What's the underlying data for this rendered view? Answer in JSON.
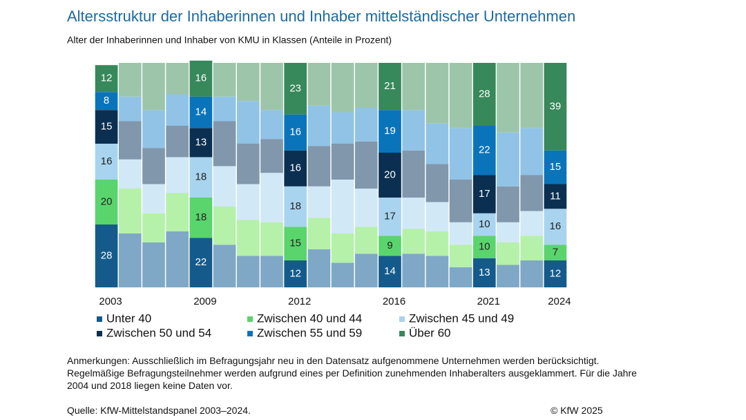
{
  "chart_data": {
    "type": "stacked_bar",
    "title": "Altersstruktur der Inhaberinnen und Inhaber mittelständischer Unternehmen",
    "subtitle": "Alter der Inhaberinnen und Inhaber von KMU in Klassen (Anteile in Prozent)",
    "categories": [
      "2003",
      null,
      null,
      null,
      "2009",
      null,
      null,
      null,
      "2012",
      null,
      null,
      null,
      "2016",
      null,
      null,
      null,
      "2021",
      null,
      null,
      "2024"
    ],
    "ylim": [
      0,
      100
    ],
    "series": [
      {
        "name": "Unter 40",
        "color": "#145b8c",
        "muted_color": "#7fa8c6",
        "values": [
          28,
          24,
          20,
          25,
          22,
          19,
          14,
          14,
          12,
          17,
          11,
          15,
          14,
          15,
          14,
          9,
          13,
          10,
          12,
          12
        ]
      },
      {
        "name": "Zwischen 40 und 44",
        "color": "#5ad46c",
        "muted_color": "#b5f1a9",
        "values": [
          20,
          20,
          13,
          17,
          18,
          17,
          16,
          15,
          15,
          14,
          13,
          12,
          9,
          11,
          11,
          10,
          10,
          10,
          11,
          7
        ]
      },
      {
        "name": "Zwischen 45 und 49",
        "color": "#a8d4ef",
        "muted_color": "#d1e8f6",
        "values": [
          16,
          13,
          13,
          16,
          18,
          18,
          16,
          22,
          18,
          14,
          24,
          17,
          17,
          14,
          13,
          10,
          10,
          9,
          11,
          16
        ]
      },
      {
        "name": "Zwischen 50 und 54",
        "color": "#0b2f50",
        "muted_color": "#8197ab",
        "values": [
          15,
          17,
          16,
          14,
          13,
          20,
          18,
          15,
          16,
          18,
          16,
          21,
          20,
          21,
          17,
          19,
          17,
          16,
          16,
          11
        ]
      },
      {
        "name": "Zwischen 55 und 59",
        "color": "#0a74ba",
        "muted_color": "#90c3e6",
        "values": [
          8,
          11,
          17,
          14,
          14,
          11,
          19,
          13,
          16,
          18,
          14,
          15,
          19,
          18,
          18,
          23,
          22,
          24,
          21,
          15
        ]
      },
      {
        "name": "Über 60",
        "color": "#37885a",
        "muted_color": "#9dc5aa",
        "values": [
          12,
          15,
          21,
          14,
          16,
          15,
          17,
          21,
          23,
          19,
          22,
          20,
          21,
          21,
          27,
          29,
          28,
          31,
          29,
          39
        ]
      }
    ]
  },
  "notes": "Anmerkungen: Ausschließlich im Befragungsjahr neu in den Datensatz aufgenommene Unternehmen werden berücksichtigt. Regelmäßige Befragungsteilnehmer werden aufgrund eines per Definition zunehmenden Inhaberalters ausgeklammert. Für die Jahre 2004 und 2018 liegen keine Daten vor.",
  "source": "Quelle: KfW-Mittelstandspanel 2003–2024.",
  "copyright": "© KfW 2025"
}
